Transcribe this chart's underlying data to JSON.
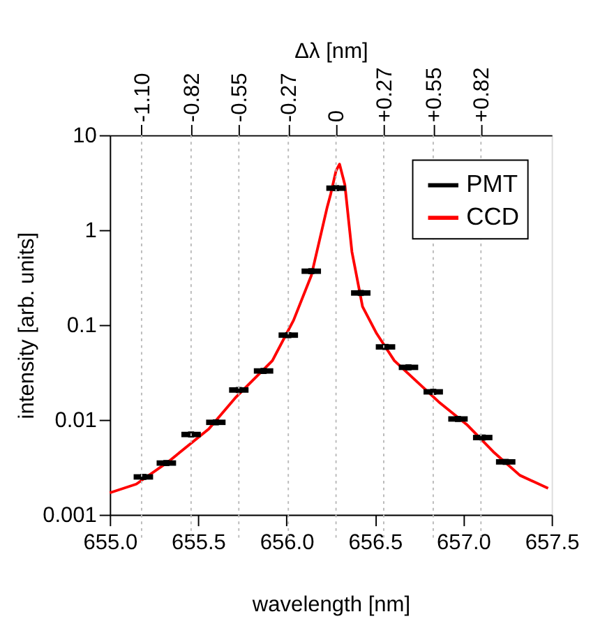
{
  "chart_data": {
    "type": "line",
    "xlabel": "wavelength [nm]",
    "ylabel": "intensity [arb. units]",
    "x2label": "Δλ [nm]",
    "xlim": [
      655.0,
      657.5
    ],
    "xticks": [
      {
        "value": 655.0,
        "label": "655.0"
      },
      {
        "value": 655.5,
        "label": "655.5"
      },
      {
        "value": 656.0,
        "label": "656.0"
      },
      {
        "value": 656.5,
        "label": "656.5"
      },
      {
        "value": 657.0,
        "label": "657.0"
      },
      {
        "value": 657.5,
        "label": "657.5"
      }
    ],
    "x2lim": [
      -1.28,
      1.22
    ],
    "x2ticks": [
      {
        "value": -1.1,
        "label": "-1.10"
      },
      {
        "value": -0.82,
        "label": "-0.82"
      },
      {
        "value": -0.55,
        "label": "-0.55"
      },
      {
        "value": -0.27,
        "label": "-0.27"
      },
      0,
      {
        "value": 0.27,
        "label": "+0.27"
      },
      {
        "value": 0.55,
        "label": "+0.55"
      },
      {
        "value": 0.82,
        "label": "+0.82"
      }
    ],
    "ylim": [
      0.001,
      10
    ],
    "yticks": [
      0.001,
      0.01,
      0.1,
      1,
      10
    ],
    "log": true,
    "grid": "x",
    "legend": "top right",
    "series": [
      {
        "name": "PMT",
        "type": "scatter",
        "marker": "square",
        "color": "#000000",
        "xerrors": [
          0.055,
          0.055,
          0.055,
          0.055,
          0.055,
          0.055,
          0.055,
          0.055,
          0.055,
          0.055,
          0.055,
          0.055,
          0.055,
          0.055,
          0.055,
          0.055
        ],
        "x": [
          655.19,
          655.32,
          655.46,
          655.6,
          655.73,
          655.87,
          656.01,
          656.14,
          656.28,
          656.42,
          656.56,
          656.69,
          656.83,
          656.97,
          657.11,
          657.24
        ],
        "values": [
          0.0025,
          0.0035,
          0.007,
          0.0094,
          0.0206,
          0.0327,
          0.078,
          0.368,
          2.76,
          0.217,
          0.0586,
          0.0357,
          0.0197,
          0.0102,
          0.0065,
          0.0036
        ]
      },
      {
        "name": "CCD",
        "color": "#ff0000",
        "x": [
          655.0,
          655.15,
          655.33,
          655.56,
          655.71,
          655.92,
          656.04,
          656.14,
          656.23,
          656.25,
          656.28,
          656.3,
          656.33,
          656.37,
          656.43,
          656.51,
          656.61,
          656.73,
          656.86,
          657.02,
          657.17,
          657.32,
          657.48
        ],
        "values": [
          0.0017,
          0.0021,
          0.0036,
          0.008,
          0.017,
          0.042,
          0.112,
          0.33,
          1.74,
          2.4,
          4.2,
          4.95,
          3.0,
          0.59,
          0.156,
          0.081,
          0.042,
          0.026,
          0.0155,
          0.0089,
          0.0046,
          0.0026,
          0.0019
        ]
      }
    ]
  }
}
